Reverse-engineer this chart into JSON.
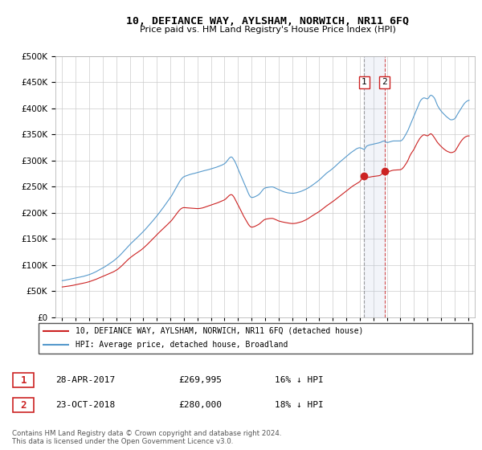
{
  "title": "10, DEFIANCE WAY, AYLSHAM, NORWICH, NR11 6FQ",
  "subtitle": "Price paid vs. HM Land Registry's House Price Index (HPI)",
  "legend_line1": "10, DEFIANCE WAY, AYLSHAM, NORWICH, NR11 6FQ (detached house)",
  "legend_line2": "HPI: Average price, detached house, Broadland",
  "table_rows": [
    {
      "num": "1",
      "date": "28-APR-2017",
      "price": "£269,995",
      "note": "16% ↓ HPI"
    },
    {
      "num": "2",
      "date": "23-OCT-2018",
      "price": "£280,000",
      "note": "18% ↓ HPI"
    }
  ],
  "footnote": "Contains HM Land Registry data © Crown copyright and database right 2024.\nThis data is licensed under the Open Government Licence v3.0.",
  "hpi_color": "#5599cc",
  "price_color": "#cc2222",
  "marker1_x": 2017.33,
  "marker2_x": 2018.82,
  "marker1_y": 269995,
  "marker2_y": 280000,
  "ylim": [
    0,
    500000
  ],
  "xlim_start": 1994.5,
  "xlim_end": 2025.5,
  "yticks": [
    0,
    50000,
    100000,
    150000,
    200000,
    250000,
    300000,
    350000,
    400000,
    450000,
    500000
  ],
  "xticks": [
    1995,
    1996,
    1997,
    1998,
    1999,
    2000,
    2001,
    2002,
    2003,
    2004,
    2005,
    2006,
    2007,
    2008,
    2009,
    2010,
    2011,
    2012,
    2013,
    2014,
    2015,
    2016,
    2017,
    2018,
    2019,
    2020,
    2021,
    2022,
    2023,
    2024,
    2025
  ]
}
